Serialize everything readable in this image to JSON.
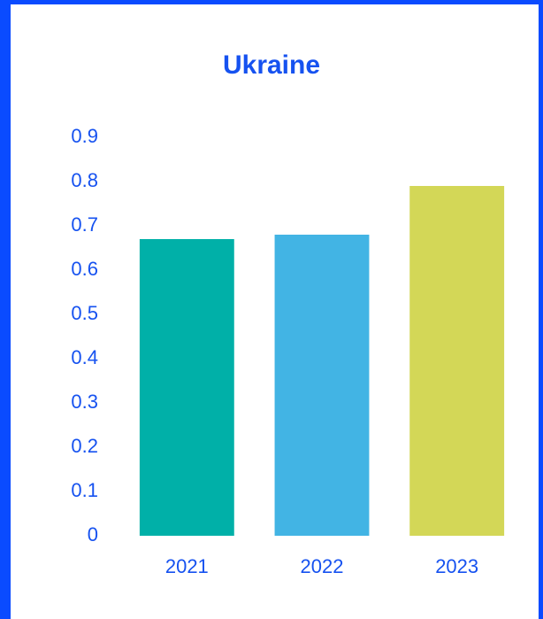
{
  "chart_data": {
    "type": "bar",
    "title": "Ukraine",
    "categories": [
      "2021",
      "2022",
      "2023"
    ],
    "values": [
      0.67,
      0.68,
      0.79
    ],
    "colors": [
      "#00b0a8",
      "#42b4e4",
      "#d3d757"
    ],
    "ylim": [
      0,
      0.9
    ],
    "yticks": [
      0,
      0.1,
      0.2,
      0.3,
      0.4,
      0.5,
      0.6,
      0.7,
      0.8,
      0.9
    ],
    "grid": false
  }
}
